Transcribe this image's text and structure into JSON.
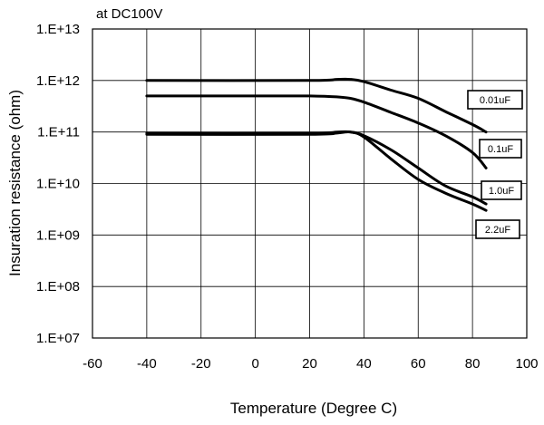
{
  "chart_data": {
    "type": "line",
    "annotation": "at DC100V",
    "xlabel": "Temperature (Degree C)",
    "ylabel": "Insuration resistance (ohm)",
    "xlim": [
      -60,
      100
    ],
    "x_ticks": [
      -60,
      -40,
      -20,
      0,
      20,
      40,
      60,
      80,
      100
    ],
    "x_tick_labels": [
      "-60",
      "-40",
      "-20",
      "0",
      "20",
      "40",
      "60",
      "80",
      "100"
    ],
    "y_scale": "log",
    "ylim": [
      10000000.0,
      10000000000000.0
    ],
    "y_ticks": [
      10000000.0,
      100000000.0,
      1000000000.0,
      10000000000.0,
      100000000000.0,
      1000000000000.0,
      10000000000000.0
    ],
    "y_tick_labels": [
      "1.E+07",
      "1.E+08",
      "1.E+09",
      "1.E+10",
      "1.E+11",
      "1.E+12",
      "1.E+13"
    ],
    "grid": true,
    "line_color": "#000000",
    "series": [
      {
        "name": "0.01uF",
        "x": [
          -40,
          20,
          30,
          35,
          40,
          50,
          60,
          70,
          80,
          85
        ],
        "y": [
          1000000000000.0,
          1000000000000.0,
          1050000000000.0,
          1050000000000.0,
          950000000000.0,
          650000000000.0,
          450000000000.0,
          250000000000.0,
          140000000000.0,
          100000000000.0
        ]
      },
      {
        "name": "0.1uF",
        "x": [
          -40,
          10,
          20,
          30,
          35,
          40,
          50,
          60,
          70,
          80,
          85
        ],
        "y": [
          500000000000.0,
          500000000000.0,
          500000000000.0,
          480000000000.0,
          450000000000.0,
          380000000000.0,
          240000000000.0,
          150000000000.0,
          85000000000.0,
          40000000000.0,
          20000000000.0
        ]
      },
      {
        "name": "1.0uF",
        "x": [
          -40,
          20,
          30,
          35,
          40,
          50,
          60,
          70,
          80,
          85
        ],
        "y": [
          95000000000.0,
          95000000000.0,
          100000000000.0,
          100000000000.0,
          85000000000.0,
          45000000000.0,
          20000000000.0,
          9000000000.0,
          5500000000.0,
          4000000000.0
        ]
      },
      {
        "name": "2.2uF",
        "x": [
          -40,
          20,
          30,
          35,
          40,
          50,
          60,
          70,
          80,
          85
        ],
        "y": [
          90000000000.0,
          90000000000.0,
          95000000000.0,
          100000000000.0,
          80000000000.0,
          30000000000.0,
          12000000000.0,
          6500000000.0,
          4000000000.0,
          3000000000.0
        ]
      }
    ]
  }
}
